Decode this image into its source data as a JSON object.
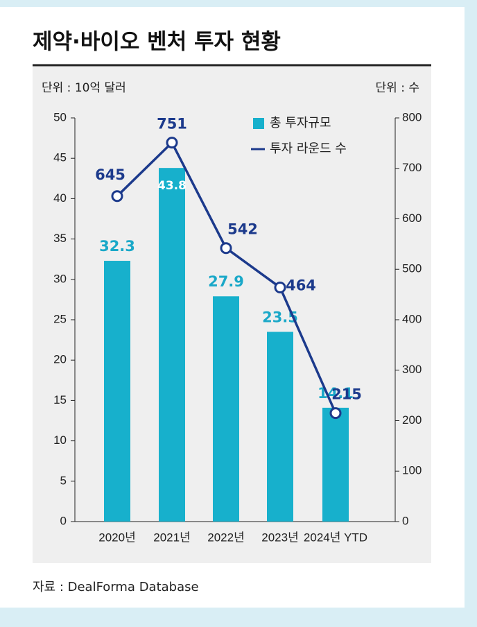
{
  "chart_data": {
    "type": "bar",
    "title": "제약·바이오 벤처 투자 현황",
    "left_unit": "단위 : 10억 달러",
    "right_unit": "단위 : 수",
    "source": "자료 : DealForma Database",
    "categories": [
      "2020년",
      "2021년",
      "2022년",
      "2023년",
      "2024년 YTD"
    ],
    "series": [
      {
        "name": "총 투자규모",
        "type": "bar",
        "color": "#17b0cc",
        "values": [
          32.3,
          43.8,
          27.9,
          23.5,
          14.1
        ]
      },
      {
        "name": "투자 라운드 수",
        "type": "line",
        "axis": "y2",
        "color": "#1c3a8c",
        "values": [
          645,
          751,
          542,
          464,
          215
        ]
      }
    ],
    "ylim": [
      0,
      50
    ],
    "yticks": [
      0,
      5,
      10,
      15,
      20,
      25,
      30,
      35,
      40,
      45,
      50
    ],
    "y2lim": [
      0,
      800
    ],
    "y2ticks": [
      0,
      100,
      200,
      300,
      400,
      500,
      600,
      700,
      800
    ]
  }
}
